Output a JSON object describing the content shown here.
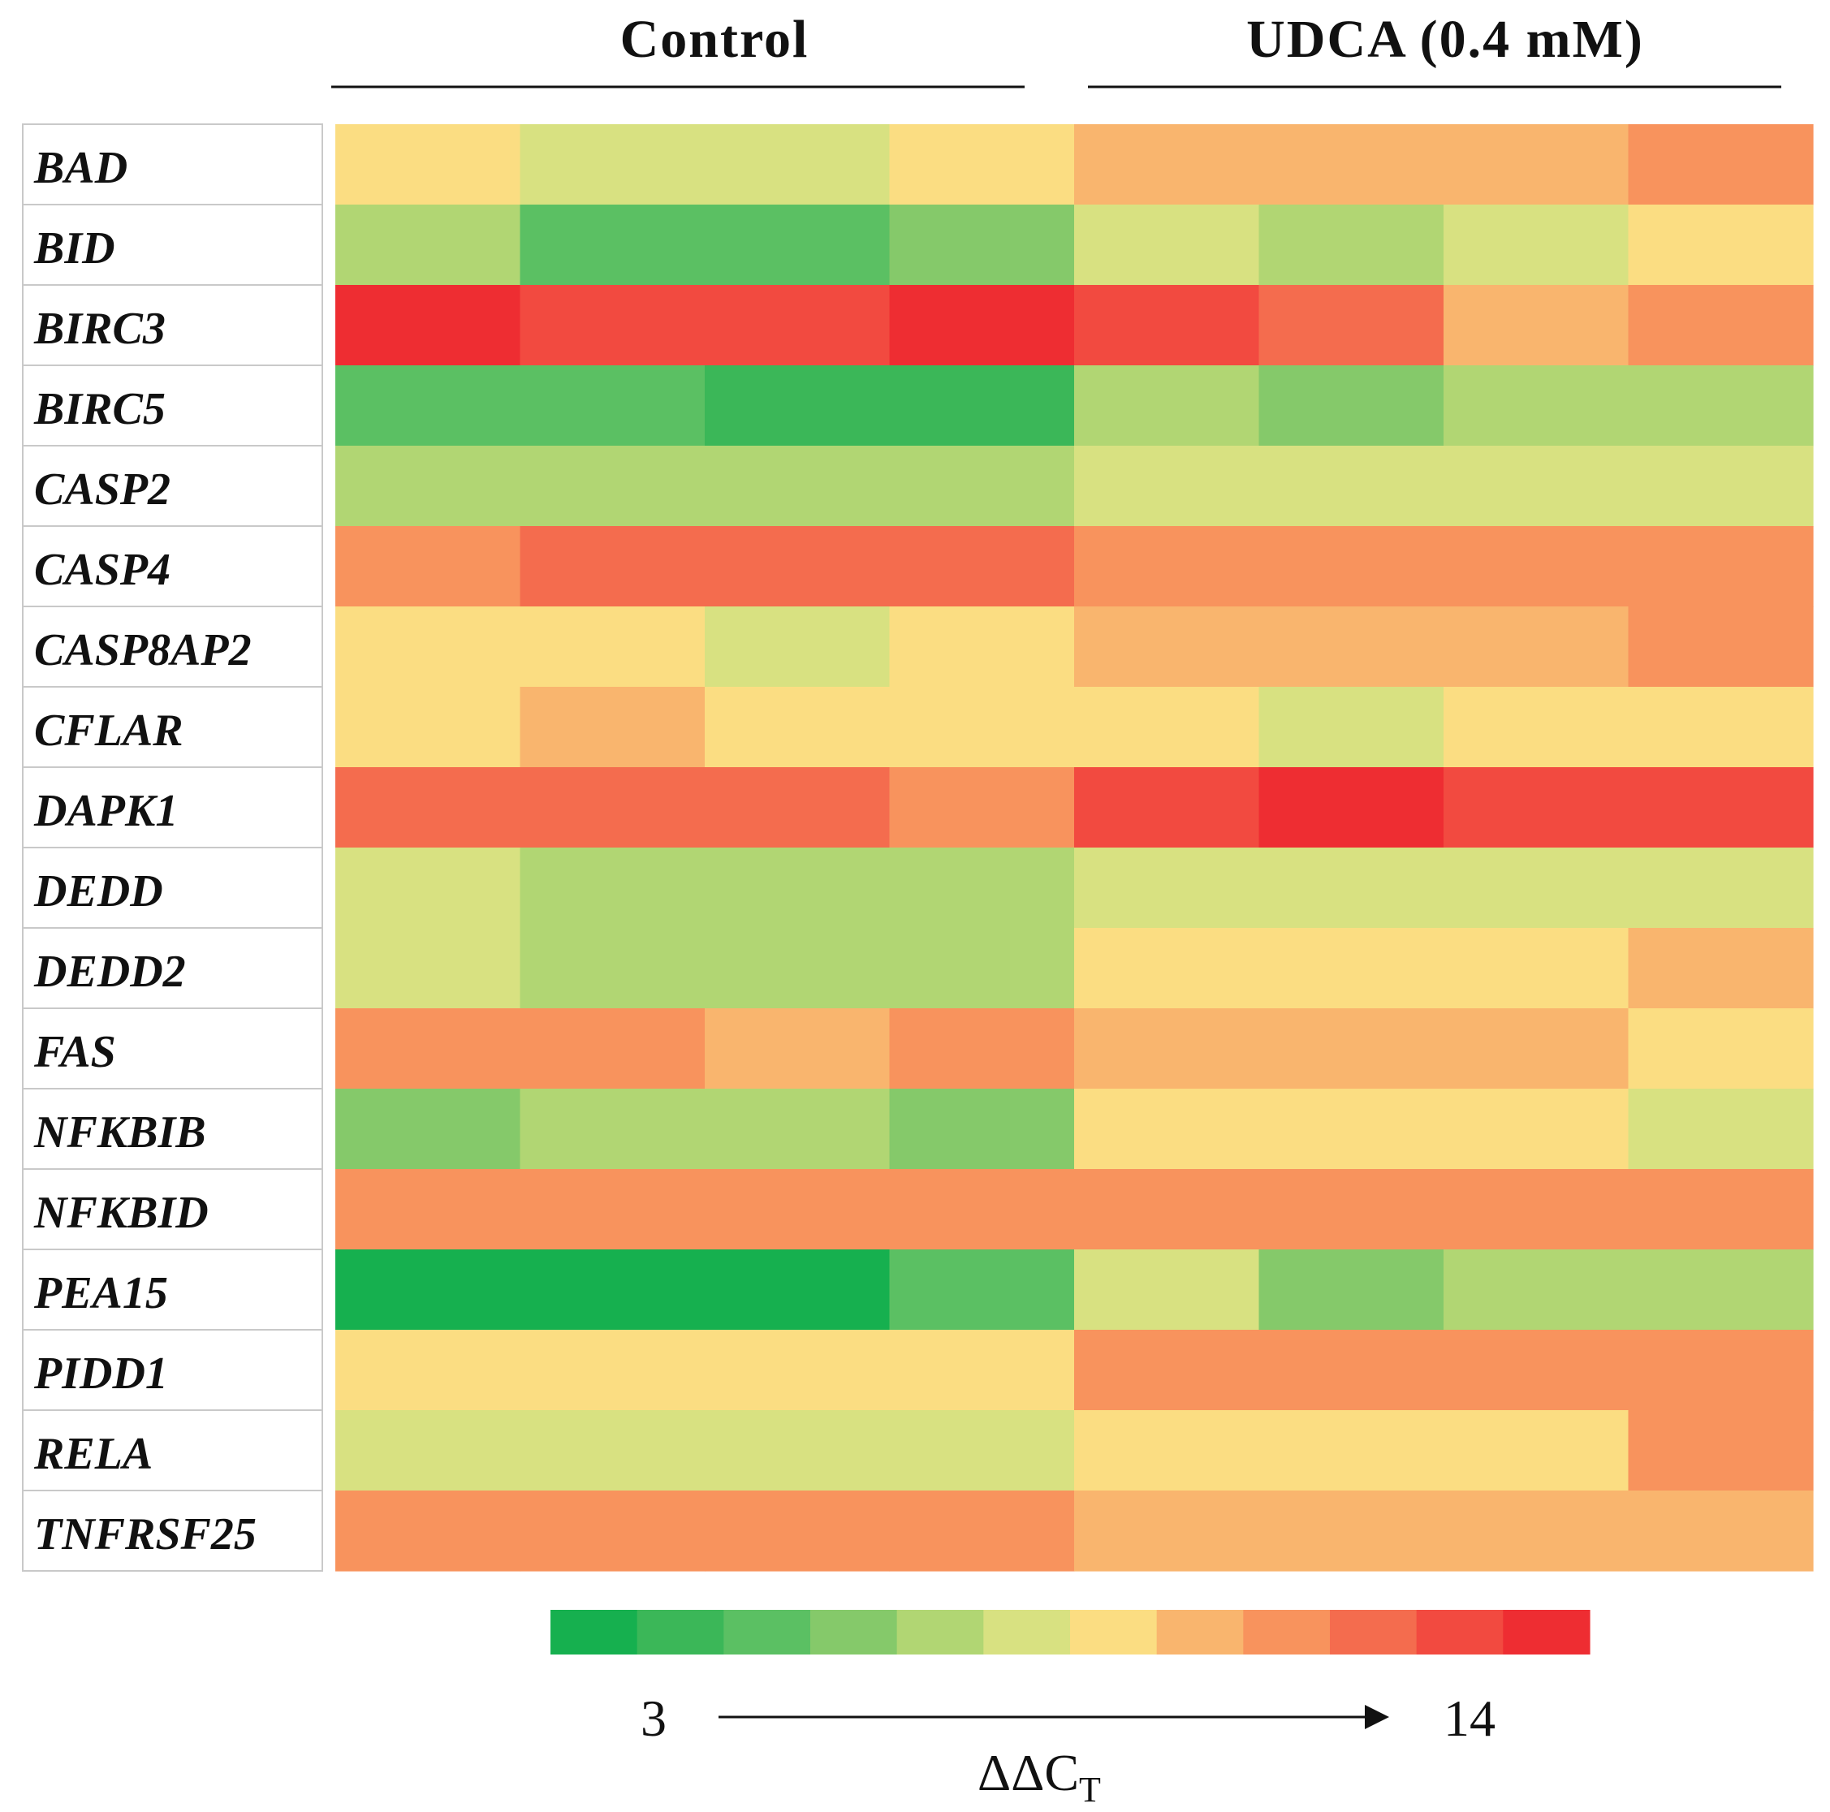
{
  "chart_data": {
    "type": "heatmap",
    "title": "",
    "groups": [
      {
        "label": "Control",
        "columns": 4
      },
      {
        "label": "UDCA (0.4 mM)",
        "columns": 4
      }
    ],
    "rows": [
      "BAD",
      "BID",
      "BIRC3",
      "BIRC5",
      "CASP2",
      "CASP4",
      "CASP8AP2",
      "CFLAR",
      "DAPK1",
      "DEDD",
      "DEDD2",
      "FAS",
      "NFKBIB",
      "NFKBID",
      "PEA15",
      "PIDD1",
      "RELA",
      "TNFRSF25"
    ],
    "values": [
      [
        8.8,
        7.9,
        7.9,
        8.8,
        10.0,
        10.0,
        10.0,
        11.0
      ],
      [
        6.7,
        5.3,
        5.3,
        6.5,
        8.0,
        7.4,
        8.0,
        8.6
      ],
      [
        13.6,
        12.5,
        12.5,
        13.2,
        12.3,
        11.3,
        10.1,
        10.4
      ],
      [
        4.9,
        5.5,
        4.1,
        4.1,
        7.0,
        6.5,
        7.3,
        7.0
      ],
      [
        7.0,
        7.3,
        6.8,
        6.7,
        7.9,
        7.9,
        7.9,
        7.6
      ],
      [
        10.9,
        11.6,
        11.6,
        11.6,
        10.5,
        10.5,
        10.5,
        10.4
      ],
      [
        9.0,
        9.2,
        8.4,
        8.8,
        10.2,
        10.1,
        10.2,
        11.0
      ],
      [
        9.2,
        9.6,
        9.2,
        9.2,
        8.6,
        8.3,
        8.6,
        8.5
      ],
      [
        11.3,
        12.0,
        11.5,
        11.2,
        12.4,
        13.4,
        12.9,
        12.7
      ],
      [
        7.6,
        7.0,
        7.0,
        7.1,
        8.2,
        8.0,
        8.0,
        7.6
      ],
      [
        7.7,
        7.4,
        7.4,
        6.8,
        8.9,
        8.6,
        8.6,
        9.5
      ],
      [
        10.8,
        10.8,
        9.9,
        10.9,
        10.0,
        10.0,
        10.0,
        9.2
      ],
      [
        6.5,
        7.4,
        7.4,
        5.9,
        9.3,
        9.3,
        9.3,
        8.2
      ],
      [
        10.4,
        10.4,
        10.4,
        10.5,
        10.6,
        10.6,
        10.6,
        11.0
      ],
      [
        3.6,
        3.6,
        3.6,
        4.9,
        8.3,
        6.0,
        7.0,
        7.0
      ],
      [
        9.1,
        9.4,
        9.2,
        9.2,
        10.5,
        10.5,
        10.7,
        10.6
      ],
      [
        8.1,
        7.7,
        8.4,
        8.4,
        9.0,
        9.1,
        9.3,
        10.6
      ],
      [
        10.4,
        10.5,
        10.5,
        10.4,
        10.0,
        10.0,
        10.1,
        10.0
      ]
    ],
    "colorscale": {
      "min": 3,
      "max": 14,
      "colors": [
        "#16B04F",
        "#3BB758",
        "#5BC063",
        "#85C96A",
        "#B1D673",
        "#D8E181",
        "#FBDD82",
        "#F9B56E",
        "#F8935D",
        "#F46C4E",
        "#F24A40",
        "#EE2D32"
      ],
      "min_label": "3",
      "max_label": "14",
      "label_main": "ΔΔC",
      "label_sub": "T"
    }
  }
}
